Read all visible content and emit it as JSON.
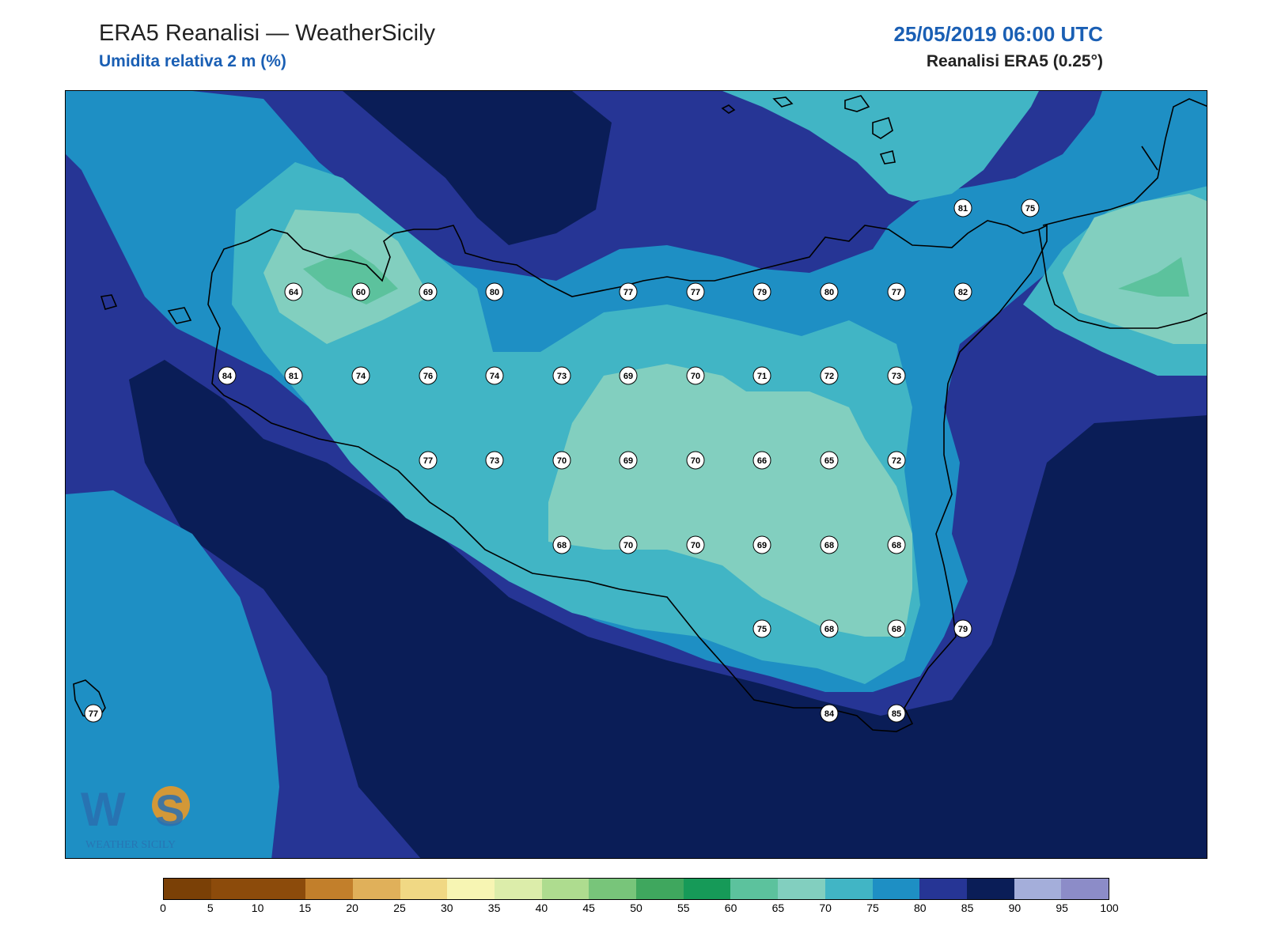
{
  "header": {
    "title": "ERA5 Reanalisi — WeatherSicily",
    "subtitle": "Umidita relativa 2 m (%)",
    "datetime": "25/05/2019 06:00 UTC",
    "source": "Reanalisi ERA5 (0.25°)"
  },
  "logo": {
    "text": "WEATHER SICILY",
    "initials": "WS"
  },
  "colorbar": {
    "ticks": [
      "0",
      "5",
      "10",
      "15",
      "20",
      "25",
      "30",
      "35",
      "40",
      "45",
      "50",
      "55",
      "60",
      "65",
      "70",
      "75",
      "80",
      "85",
      "90",
      "95",
      "100"
    ],
    "colors": [
      "#7a4006",
      "#8c4b0b",
      "#8c4b0b",
      "#c27f2b",
      "#e0b05a",
      "#f0d884",
      "#f7f5b3",
      "#dcedaa",
      "#aedc8f",
      "#78c57a",
      "#3fa75e",
      "#169a58",
      "#5cc29d",
      "#82cfbf",
      "#41b5c5",
      "#1e8fc4",
      "#263595",
      "#0a1d57",
      "#a4aeda",
      "#8c8cc8"
    ]
  },
  "stations": [
    {
      "v": "64"
    },
    {
      "v": "60"
    },
    {
      "v": "69"
    },
    {
      "v": "80"
    },
    {
      "v": "77"
    },
    {
      "v": "77"
    },
    {
      "v": "79"
    },
    {
      "v": "80"
    },
    {
      "v": "77"
    },
    {
      "v": "82"
    },
    {
      "v": "84"
    },
    {
      "v": "81"
    },
    {
      "v": "74"
    },
    {
      "v": "76"
    },
    {
      "v": "74"
    },
    {
      "v": "73"
    },
    {
      "v": "69"
    },
    {
      "v": "70"
    },
    {
      "v": "71"
    },
    {
      "v": "72"
    },
    {
      "v": "73"
    },
    {
      "v": "77"
    },
    {
      "v": "73"
    },
    {
      "v": "70"
    },
    {
      "v": "69"
    },
    {
      "v": "70"
    },
    {
      "v": "66"
    },
    {
      "v": "65"
    },
    {
      "v": "72"
    },
    {
      "v": "68"
    },
    {
      "v": "70"
    },
    {
      "v": "70"
    },
    {
      "v": "69"
    },
    {
      "v": "68"
    },
    {
      "v": "68"
    },
    {
      "v": "75"
    },
    {
      "v": "68"
    },
    {
      "v": "68"
    },
    {
      "v": "79"
    },
    {
      "v": "84"
    },
    {
      "v": "85"
    },
    {
      "v": "81"
    },
    {
      "v": "75"
    },
    {
      "v": "77"
    }
  ]
}
